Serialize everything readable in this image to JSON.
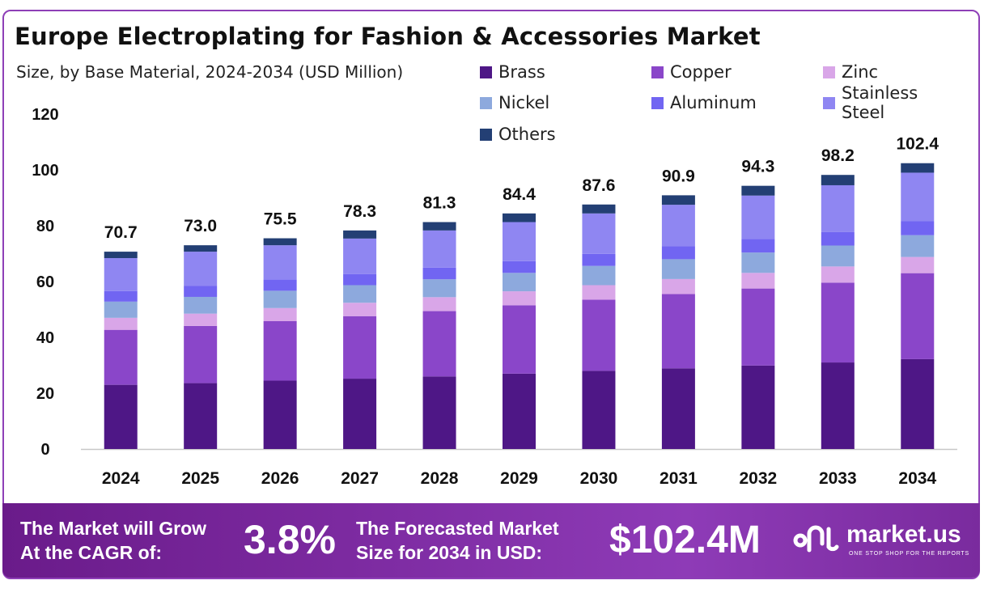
{
  "title": "Europe Electroplating for Fashion & Accessories Market",
  "subtitle": "Size, by Base Material, 2024-2034 (USD Million)",
  "colors": {
    "Brass": "#4e1786",
    "Copper": "#8a46c9",
    "Zinc": "#d9a6e8",
    "Nickel": "#8da9dd",
    "Aluminum": "#7165f2",
    "Stainless Steel": "#8f86f2",
    "Others": "#233f74"
  },
  "chart_data": {
    "type": "bar",
    "stacked": true,
    "categories": [
      "2024",
      "2025",
      "2026",
      "2027",
      "2028",
      "2029",
      "2030",
      "2031",
      "2032",
      "2033",
      "2034"
    ],
    "totals": [
      70.7,
      73.0,
      75.5,
      78.3,
      81.3,
      84.4,
      87.6,
      90.9,
      94.3,
      98.2,
      102.4
    ],
    "total_labels": [
      "70.7",
      "73.0",
      "75.5",
      "78.3",
      "81.3",
      "84.4",
      "87.6",
      "90.9",
      "94.3",
      "98.2",
      "102.4"
    ],
    "series": [
      {
        "name": "Brass",
        "values": [
          23.0,
          23.6,
          24.5,
          25.2,
          26.0,
          27.0,
          28.0,
          28.9,
          29.9,
          31.0,
          32.2
        ]
      },
      {
        "name": "Copper",
        "values": [
          19.7,
          20.5,
          21.3,
          22.4,
          23.4,
          24.5,
          25.5,
          26.6,
          27.6,
          28.6,
          30.8
        ]
      },
      {
        "name": "Zinc",
        "values": [
          4.3,
          4.4,
          4.7,
          4.8,
          5.0,
          5.0,
          5.2,
          5.4,
          5.6,
          5.8,
          5.8
        ]
      },
      {
        "name": "Nickel",
        "values": [
          5.8,
          6.0,
          6.2,
          6.3,
          6.4,
          6.6,
          6.9,
          7.1,
          7.3,
          7.5,
          7.8
        ]
      },
      {
        "name": "Aluminum",
        "values": [
          3.8,
          3.9,
          4.0,
          4.0,
          4.2,
          4.2,
          4.3,
          4.6,
          4.9,
          4.8,
          5.0
        ]
      },
      {
        "name": "Stainless Steel",
        "values": [
          11.8,
          12.3,
          12.3,
          12.7,
          13.3,
          14.0,
          14.5,
          14.9,
          15.5,
          16.8,
          17.4
        ]
      },
      {
        "name": "Others",
        "values": [
          2.3,
          2.3,
          2.5,
          2.9,
          3.0,
          3.1,
          3.2,
          3.4,
          3.5,
          3.7,
          3.4
        ]
      }
    ],
    "ylim": [
      0,
      120
    ],
    "yticks": [
      0,
      20,
      40,
      60,
      80,
      100,
      120
    ],
    "ytick_labels": [
      "0",
      "20",
      "40",
      "60",
      "80",
      "100",
      "120"
    ],
    "legend_position": "top-right",
    "grid": false
  },
  "footer": {
    "cagr_label_line1": "The Market will Grow",
    "cagr_label_line2": "At the CAGR of:",
    "cagr_value": "3.8%",
    "forecast_label_line1": "The Forecasted Market",
    "forecast_label_line2": "Size for 2034 in USD:",
    "forecast_value": "$102.4M",
    "brand_name": "market.us",
    "brand_tagline": "ONE STOP SHOP FOR THE REPORTS"
  }
}
